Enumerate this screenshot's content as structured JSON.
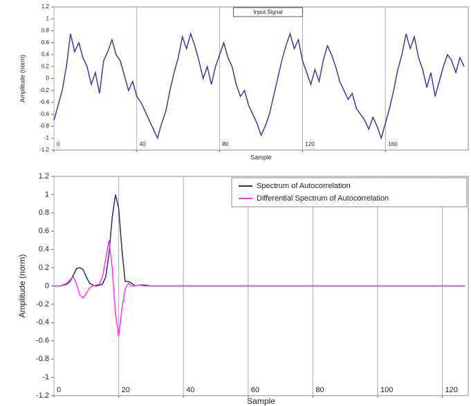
{
  "chart_data": [
    {
      "type": "line",
      "xlabel": "Sample",
      "ylabel": "Amplitude (norm)",
      "x": [
        0,
        2,
        4,
        6,
        8,
        10,
        12,
        14,
        16,
        18,
        20,
        22,
        24,
        26,
        28,
        30,
        32,
        34,
        36,
        38,
        40,
        42,
        44,
        46,
        48,
        50,
        52,
        54,
        56,
        58,
        60,
        62,
        64,
        66,
        68,
        70,
        72,
        74,
        76,
        78,
        80,
        82,
        84,
        86,
        88,
        90,
        92,
        94,
        96,
        98,
        100,
        102,
        104,
        106,
        108,
        110,
        112,
        114,
        116,
        118,
        120,
        122,
        124,
        126,
        128,
        130,
        132,
        134,
        136,
        138,
        140,
        142,
        144,
        146,
        148,
        150,
        152,
        154,
        156,
        158,
        160,
        162,
        164,
        166,
        168,
        170,
        172,
        174,
        176,
        178,
        180,
        182,
        184,
        186,
        188,
        190,
        192,
        194,
        196,
        198
      ],
      "series": [
        {
          "name": "Input Signal",
          "color": "#3a3a9a",
          "values": [
            -0.7,
            -0.45,
            -0.2,
            0.2,
            0.75,
            0.45,
            0.6,
            0.35,
            0.2,
            -0.1,
            0.1,
            -0.25,
            0.3,
            0.45,
            0.65,
            0.4,
            0.3,
            0.05,
            -0.2,
            -0.05,
            -0.3,
            -0.4,
            -0.55,
            -0.7,
            -0.85,
            -1.0,
            -0.75,
            -0.55,
            -0.2,
            0.1,
            0.35,
            0.7,
            0.5,
            0.75,
            0.55,
            0.3,
            0.0,
            0.2,
            -0.1,
            0.2,
            0.4,
            0.6,
            0.35,
            0.2,
            -0.1,
            -0.3,
            -0.2,
            -0.45,
            -0.6,
            -0.75,
            -0.95,
            -0.8,
            -0.6,
            -0.3,
            0.0,
            0.3,
            0.55,
            0.75,
            0.5,
            0.65,
            0.3,
            0.1,
            -0.1,
            0.15,
            -0.05,
            0.3,
            0.55,
            0.4,
            0.2,
            -0.05,
            -0.2,
            -0.35,
            -0.25,
            -0.5,
            -0.6,
            -0.7,
            -0.85,
            -0.65,
            -0.8,
            -1.0,
            -0.75,
            -0.5,
            -0.2,
            0.15,
            0.4,
            0.75,
            0.5,
            0.7,
            0.35,
            0.15,
            -0.15,
            0.1,
            -0.3,
            -0.05,
            0.2,
            0.4,
            0.3,
            0.1,
            0.35,
            0.2
          ]
        }
      ],
      "xlim": [
        0,
        200
      ],
      "xticks": [
        0,
        40,
        80,
        120,
        160
      ],
      "ylim": [
        -1.2,
        1.2
      ],
      "yticks": [
        1.2,
        1,
        0.8,
        0.6,
        0.4,
        0.2,
        0,
        -0.2,
        -0.4,
        -0.6,
        -0.8,
        -1,
        -1.2
      ],
      "grid": "x",
      "legend": "top"
    },
    {
      "type": "line",
      "xlabel": "Sample",
      "ylabel": "Amplitude (norm)",
      "x": [
        0,
        2,
        4,
        5,
        6,
        7,
        8,
        9,
        10,
        11,
        12,
        13,
        14,
        15,
        16,
        17,
        18,
        19,
        20,
        21,
        22,
        23,
        24,
        25,
        26,
        28,
        30,
        40,
        60,
        80,
        100,
        120,
        127
      ],
      "series": [
        {
          "name": "Spectrum of Autocorrelation",
          "color": "#2a2a6e",
          "values": [
            0,
            0,
            0.02,
            0.05,
            0.12,
            0.19,
            0.2,
            0.18,
            0.1,
            0.03,
            0.01,
            0,
            0.01,
            0.02,
            0.1,
            0.35,
            0.75,
            1.0,
            0.85,
            0.4,
            0.05,
            0.05,
            0.03,
            0,
            0.01,
            0.01,
            0,
            0,
            0,
            0,
            0,
            0,
            0
          ]
        },
        {
          "name": "Differential Spectrum of Autocorrelation",
          "color": "#ff33ff",
          "values": [
            0,
            0,
            0.03,
            0.07,
            0.1,
            0.02,
            -0.1,
            -0.13,
            -0.08,
            -0.02,
            0,
            0.01,
            0.02,
            0.1,
            0.3,
            0.5,
            0.2,
            -0.3,
            -0.55,
            -0.25,
            -0.03,
            0.03,
            0,
            0,
            0.01,
            0,
            0,
            0,
            0,
            0,
            0,
            0,
            0
          ]
        }
      ],
      "xlim": [
        0,
        128
      ],
      "xticks": [
        0,
        20,
        40,
        60,
        80,
        100,
        120
      ],
      "ylim": [
        -1.2,
        1.2
      ],
      "yticks": [
        1.2,
        1,
        0.8,
        0.6,
        0.4,
        0.2,
        0,
        -0.2,
        -0.4,
        -0.6,
        -0.8,
        -1,
        -1.2
      ],
      "grid": "x",
      "legend": "upper right"
    }
  ]
}
